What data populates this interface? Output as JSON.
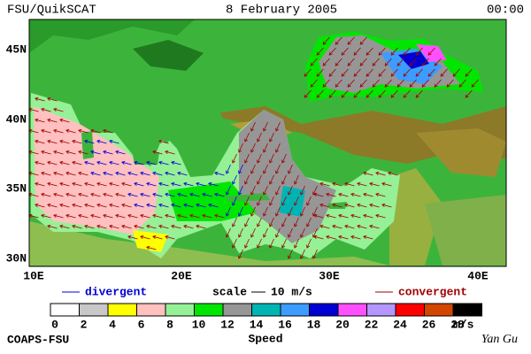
{
  "header": {
    "title": "FSU/QuikSCAT",
    "date": "8 February 2005",
    "time": "00:00"
  },
  "map": {
    "lat_labels": [
      "45N",
      "40N",
      "35N",
      "30N"
    ],
    "lon_labels": [
      "10E",
      "20E",
      "30E",
      "40E"
    ]
  },
  "legend": {
    "divergent": "divergent",
    "scale": "scale",
    "scale_value": "10 m/s",
    "convergent": "convergent"
  },
  "colorbar": {
    "colors": [
      "#ffffff",
      "#c8c8c8",
      "#ffff00",
      "#ffc0c0",
      "#96f096",
      "#00e600",
      "#969696",
      "#00b4b4",
      "#3c9cff",
      "#0000d2",
      "#ff50ff",
      "#b496ff",
      "#ff0000",
      "#d24600",
      "#000000"
    ],
    "labels": [
      0,
      2,
      4,
      6,
      8,
      10,
      12,
      14,
      16,
      18,
      20,
      22,
      24,
      26,
      28
    ],
    "unit": "m/s",
    "title": "Speed"
  },
  "footer": {
    "left": "COAPS-FSU",
    "right": "Yan Gu"
  }
}
